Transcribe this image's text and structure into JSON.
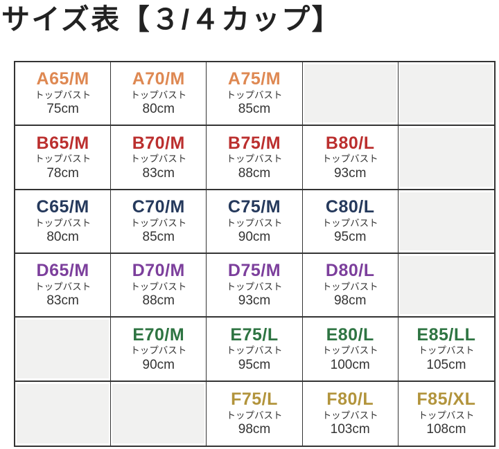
{
  "title": "サイズ表【３/４カップ】",
  "table": {
    "measure_label": "トップバスト",
    "rows": [
      {
        "cup": "A",
        "color": "#DE8852",
        "cells": [
          {
            "size": "A65/M",
            "bust": "75cm"
          },
          {
            "size": "A70/M",
            "bust": "80cm"
          },
          {
            "size": "A75/M",
            "bust": "85cm"
          },
          null,
          null
        ]
      },
      {
        "cup": "B",
        "color": "#BB2F2E",
        "cells": [
          {
            "size": "B65/M",
            "bust": "78cm"
          },
          {
            "size": "B70/M",
            "bust": "83cm"
          },
          {
            "size": "B75/M",
            "bust": "88cm"
          },
          {
            "size": "B80/L",
            "bust": "93cm"
          },
          null
        ]
      },
      {
        "cup": "C",
        "color": "#25395C",
        "cells": [
          {
            "size": "C65/M",
            "bust": "80cm"
          },
          {
            "size": "C70/M",
            "bust": "85cm"
          },
          {
            "size": "C75/M",
            "bust": "90cm"
          },
          {
            "size": "C80/L",
            "bust": "95cm"
          },
          null
        ]
      },
      {
        "cup": "D",
        "color": "#7C3F9C",
        "cells": [
          {
            "size": "D65/M",
            "bust": "83cm"
          },
          {
            "size": "D70/M",
            "bust": "88cm"
          },
          {
            "size": "D75/M",
            "bust": "93cm"
          },
          {
            "size": "D80/L",
            "bust": "98cm"
          },
          null
        ]
      },
      {
        "cup": "E",
        "color": "#2E7442",
        "cells": [
          null,
          {
            "size": "E70/M",
            "bust": "90cm"
          },
          {
            "size": "E75/L",
            "bust": "95cm"
          },
          {
            "size": "E80/L",
            "bust": "100cm"
          },
          {
            "size": "E85/LL",
            "bust": "105cm"
          }
        ]
      },
      {
        "cup": "F",
        "color": "#B2943C",
        "cells": [
          null,
          null,
          {
            "size": "F75/L",
            "bust": "98cm"
          },
          {
            "size": "F80/L",
            "bust": "103cm"
          },
          {
            "size": "F85/XL",
            "bust": "108cm"
          }
        ]
      }
    ]
  },
  "colors": {
    "border": "#333333",
    "empty_cell": "#f1f1f0",
    "text": "#333333",
    "title": "#222222"
  }
}
